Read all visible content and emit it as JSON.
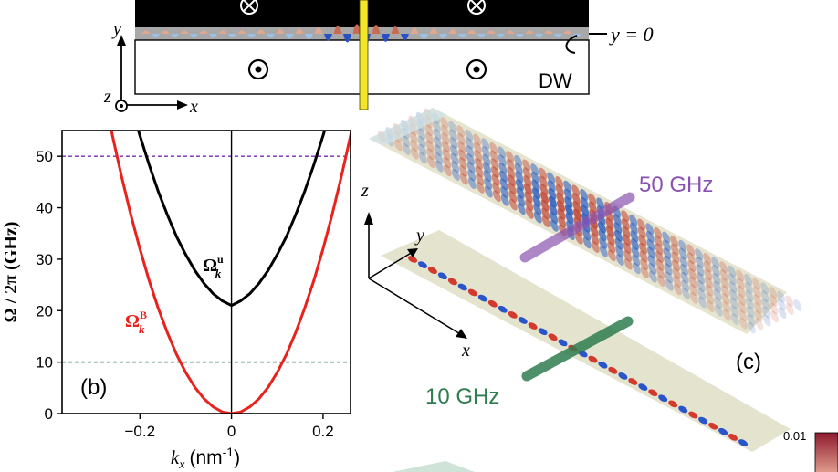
{
  "panel_a": {
    "y0_label": "y = 0",
    "dw_label": "DW",
    "axis_y": "y",
    "axis_x": "x",
    "axis_z": "z"
  },
  "chart_data": {
    "type": "line",
    "panel_label": "(b)",
    "xlabel": "k",
    "xlabel_sub": "x",
    "xlabel_unit": "(nm",
    "xlabel_exp": "-1",
    "xlabel_close": ")",
    "ylabel": "Ω / 2π (GHz)",
    "xlim": [
      -0.37,
      0.26
    ],
    "ylim": [
      0,
      55
    ],
    "xticks": [
      -0.2,
      0,
      0.2
    ],
    "xtick_labels": [
      "−0.2",
      "0",
      "0.2"
    ],
    "yticks": [
      0,
      10,
      20,
      30,
      40,
      50
    ],
    "ytick_labels": [
      "0",
      "10",
      "20",
      "30",
      "40",
      "50"
    ],
    "series": [
      {
        "name": "Ω",
        "sup": "u",
        "sub": "k",
        "color": "#000000",
        "x": [
          -0.22,
          -0.2,
          -0.18,
          -0.16,
          -0.14,
          -0.12,
          -0.1,
          -0.08,
          -0.06,
          -0.04,
          -0.02,
          0,
          0.02,
          0.04,
          0.06,
          0.08,
          0.1,
          0.12,
          0.14,
          0.16,
          0.18,
          0.2,
          0.22
        ],
        "y": [
          60.0,
          54.0,
          48.4,
          43.2,
          38.6,
          34.4,
          30.9,
          27.8,
          25.3,
          23.3,
          21.9,
          21.0,
          21.9,
          23.3,
          25.3,
          27.8,
          30.9,
          34.4,
          38.6,
          43.2,
          48.4,
          54.0,
          60.0
        ]
      },
      {
        "name": "Ω",
        "sup": "B",
        "sub": "k",
        "color": "#e8221c",
        "x": [
          -0.28,
          -0.26,
          -0.24,
          -0.22,
          -0.2,
          -0.18,
          -0.16,
          -0.14,
          -0.12,
          -0.1,
          -0.08,
          -0.06,
          -0.04,
          -0.02,
          0,
          0.02,
          0.04,
          0.06,
          0.08,
          0.1,
          0.12,
          0.14,
          0.16,
          0.18,
          0.2,
          0.22,
          0.24,
          0.26,
          0.28
        ],
        "y": [
          63.0,
          54.0,
          46.1,
          38.7,
          32.0,
          25.9,
          20.5,
          15.7,
          11.5,
          8.0,
          5.1,
          2.9,
          1.3,
          0.3,
          0,
          0.3,
          1.3,
          2.9,
          5.1,
          8.0,
          11.5,
          15.7,
          20.5,
          25.9,
          32.0,
          38.7,
          46.1,
          54.0,
          63.0
        ]
      }
    ],
    "hlines": [
      {
        "y": 50,
        "color": "#7a2ca8"
      },
      {
        "y": 10,
        "color": "#2b7a45"
      }
    ],
    "vline": {
      "x": 0,
      "color": "#000000"
    }
  },
  "panel_c": {
    "label": "(c)",
    "freq_high": "50 GHz",
    "freq_low": "10 GHz",
    "axis_z": "z",
    "axis_y": "y",
    "axis_x": "x",
    "colorbar_max": "0.01",
    "colors": {
      "high": "#8a52b0",
      "low": "#2f7d4f"
    }
  }
}
